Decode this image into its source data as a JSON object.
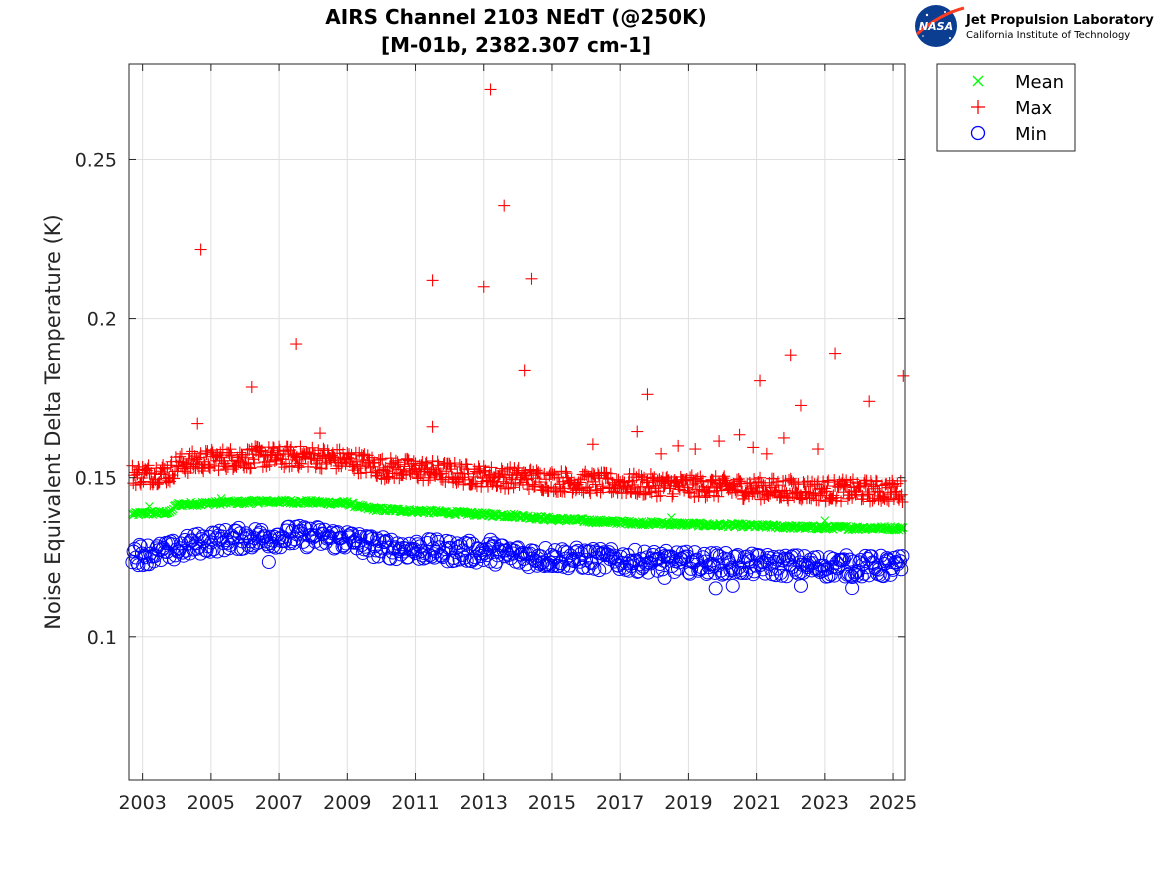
{
  "chart_data": {
    "type": "scatter",
    "title": "AIRS Channel 2103 NEdT (@250K)",
    "subtitle": "[M-01b, 2382.307 cm-1]",
    "xlabel": "",
    "ylabel": "Noise Equivalent Delta Temperature (K)",
    "xlim": [
      2002.6,
      2025.35
    ],
    "ylim": [
      0.055,
      0.28
    ],
    "x_ticks": [
      "2003",
      "2005",
      "2007",
      "2009",
      "2011",
      "2013",
      "2015",
      "2017",
      "2019",
      "2021",
      "2023",
      "2025"
    ],
    "y_ticks": [
      "0.1",
      "0.15",
      "0.2",
      "0.25"
    ],
    "grid": true,
    "legend_position": "outside-top-right",
    "series": [
      {
        "name": "Mean",
        "marker": "x",
        "color": "#00ff00",
        "x": [
          2002.7,
          2003.0,
          2003.5,
          2003.8,
          2004.0,
          2004.5,
          2005.0,
          2005.5,
          2006.0,
          2006.5,
          2007.0,
          2007.5,
          2008.0,
          2008.5,
          2009.0,
          2009.5,
          2010.0,
          2010.5,
          2011.0,
          2011.5,
          2012.0,
          2012.5,
          2013.0,
          2013.5,
          2014.0,
          2014.5,
          2015.0,
          2015.5,
          2016.0,
          2016.5,
          2017.0,
          2017.5,
          2018.0,
          2018.5,
          2019.0,
          2019.5,
          2020.0,
          2020.5,
          2021.0,
          2021.5,
          2022.0,
          2022.5,
          2023.0,
          2023.5,
          2024.0,
          2024.5,
          2025.0,
          2025.3
        ],
        "values": [
          0.1385,
          0.1388,
          0.139,
          0.139,
          0.1415,
          0.1418,
          0.142,
          0.1422,
          0.1423,
          0.1425,
          0.1425,
          0.1424,
          0.1423,
          0.1421,
          0.142,
          0.1405,
          0.14,
          0.1398,
          0.1395,
          0.1393,
          0.139,
          0.1388,
          0.1385,
          0.1382,
          0.138,
          0.1375,
          0.137,
          0.1368,
          0.1365,
          0.1362,
          0.136,
          0.1358,
          0.1357,
          0.1355,
          0.1354,
          0.1352,
          0.1351,
          0.135,
          0.1348,
          0.1347,
          0.1345,
          0.1344,
          0.1343,
          0.1343,
          0.1342,
          0.1342,
          0.1341,
          0.1341
        ],
        "outliers": [
          {
            "x": 2003.2,
            "y": 0.141
          },
          {
            "x": 2005.3,
            "y": 0.1435
          },
          {
            "x": 2018.5,
            "y": 0.1375
          },
          {
            "x": 2023.0,
            "y": 0.1365
          }
        ]
      },
      {
        "name": "Max",
        "marker": "+",
        "color": "#ff0000",
        "x": [
          2002.7,
          2003.0,
          2003.5,
          2003.8,
          2004.0,
          2004.5,
          2005.0,
          2005.5,
          2006.0,
          2006.5,
          2007.0,
          2007.5,
          2008.0,
          2008.5,
          2009.0,
          2009.5,
          2010.0,
          2010.5,
          2011.0,
          2011.5,
          2012.0,
          2012.5,
          2013.0,
          2013.5,
          2014.0,
          2014.5,
          2015.0,
          2015.5,
          2016.0,
          2016.5,
          2017.0,
          2017.5,
          2018.0,
          2018.5,
          2019.0,
          2019.5,
          2020.0,
          2020.5,
          2021.0,
          2021.5,
          2022.0,
          2022.5,
          2023.0,
          2023.5,
          2024.0,
          2024.5,
          2025.0,
          2025.3
        ],
        "values": [
          0.151,
          0.151,
          0.1515,
          0.1515,
          0.154,
          0.155,
          0.1555,
          0.156,
          0.1562,
          0.1565,
          0.1565,
          0.1565,
          0.1565,
          0.156,
          0.1555,
          0.1545,
          0.153,
          0.1528,
          0.1525,
          0.152,
          0.1515,
          0.151,
          0.1505,
          0.15,
          0.15,
          0.1495,
          0.149,
          0.1488,
          0.1485,
          0.1482,
          0.148,
          0.1478,
          0.1476,
          0.1475,
          0.1473,
          0.1472,
          0.147,
          0.1468,
          0.1466,
          0.1465,
          0.1463,
          0.1462,
          0.146,
          0.146,
          0.146,
          0.1458,
          0.1458,
          0.1458
        ],
        "outliers": [
          {
            "x": 2004.7,
            "y": 0.2217
          },
          {
            "x": 2004.6,
            "y": 0.167
          },
          {
            "x": 2006.2,
            "y": 0.1785
          },
          {
            "x": 2007.5,
            "y": 0.192
          },
          {
            "x": 2008.2,
            "y": 0.164
          },
          {
            "x": 2011.5,
            "y": 0.212
          },
          {
            "x": 2011.5,
            "y": 0.166
          },
          {
            "x": 2013.0,
            "y": 0.21
          },
          {
            "x": 2013.2,
            "y": 0.272
          },
          {
            "x": 2013.6,
            "y": 0.2355
          },
          {
            "x": 2014.2,
            "y": 0.1837
          },
          {
            "x": 2014.4,
            "y": 0.2125
          },
          {
            "x": 2016.2,
            "y": 0.1605
          },
          {
            "x": 2017.5,
            "y": 0.1645
          },
          {
            "x": 2017.8,
            "y": 0.1762
          },
          {
            "x": 2018.2,
            "y": 0.1575
          },
          {
            "x": 2018.7,
            "y": 0.16
          },
          {
            "x": 2019.2,
            "y": 0.159
          },
          {
            "x": 2019.9,
            "y": 0.1615
          },
          {
            "x": 2020.5,
            "y": 0.1635
          },
          {
            "x": 2020.9,
            "y": 0.1595
          },
          {
            "x": 2021.1,
            "y": 0.1805
          },
          {
            "x": 2021.3,
            "y": 0.1575
          },
          {
            "x": 2021.8,
            "y": 0.1625
          },
          {
            "x": 2022.0,
            "y": 0.1885
          },
          {
            "x": 2022.3,
            "y": 0.1727
          },
          {
            "x": 2022.8,
            "y": 0.159
          },
          {
            "x": 2023.3,
            "y": 0.189
          },
          {
            "x": 2024.3,
            "y": 0.174
          },
          {
            "x": 2025.3,
            "y": 0.182
          }
        ]
      },
      {
        "name": "Min",
        "marker": "o",
        "color": "#0000ff",
        "x": [
          2002.7,
          2003.0,
          2003.5,
          2003.8,
          2004.0,
          2004.5,
          2005.0,
          2005.5,
          2006.0,
          2006.5,
          2007.0,
          2007.5,
          2008.0,
          2008.5,
          2009.0,
          2009.5,
          2010.0,
          2010.5,
          2011.0,
          2011.5,
          2012.0,
          2012.5,
          2013.0,
          2013.5,
          2014.0,
          2014.5,
          2015.0,
          2015.5,
          2016.0,
          2016.5,
          2017.0,
          2017.5,
          2018.0,
          2018.5,
          2019.0,
          2019.5,
          2020.0,
          2020.5,
          2021.0,
          2021.5,
          2022.0,
          2022.5,
          2023.0,
          2023.5,
          2024.0,
          2024.5,
          2025.0,
          2025.3
        ],
        "values": [
          0.126,
          0.126,
          0.1262,
          0.1265,
          0.1275,
          0.129,
          0.13,
          0.1305,
          0.131,
          0.1312,
          0.1315,
          0.1315,
          0.1315,
          0.131,
          0.1305,
          0.129,
          0.128,
          0.1278,
          0.1275,
          0.1272,
          0.127,
          0.1268,
          0.1265,
          0.126,
          0.1255,
          0.1252,
          0.125,
          0.1248,
          0.1245,
          0.1242,
          0.124,
          0.1238,
          0.1236,
          0.1235,
          0.1233,
          0.1232,
          0.123,
          0.1228,
          0.1226,
          0.1225,
          0.1224,
          0.1223,
          0.1222,
          0.1222,
          0.1222,
          0.1221,
          0.1221,
          0.1221
        ],
        "outliers": [
          {
            "x": 2019.8,
            "y": 0.1152
          },
          {
            "x": 2020.3,
            "y": 0.116
          },
          {
            "x": 2022.3,
            "y": 0.116
          },
          {
            "x": 2023.8,
            "y": 0.1153
          },
          {
            "x": 2018.3,
            "y": 0.1185
          },
          {
            "x": 2006.7,
            "y": 0.1235
          },
          {
            "x": 2013.2,
            "y": 0.1305
          }
        ]
      }
    ]
  },
  "logo": {
    "agency_label": "NASA",
    "lab_name": "Jet Propulsion Laboratory",
    "institution": "California Institute of Technology"
  },
  "colors": {
    "mean": "#00ff00",
    "max": "#ff0000",
    "min": "#0000ff",
    "grid": "#dfdfdf",
    "axis": "#262626"
  }
}
